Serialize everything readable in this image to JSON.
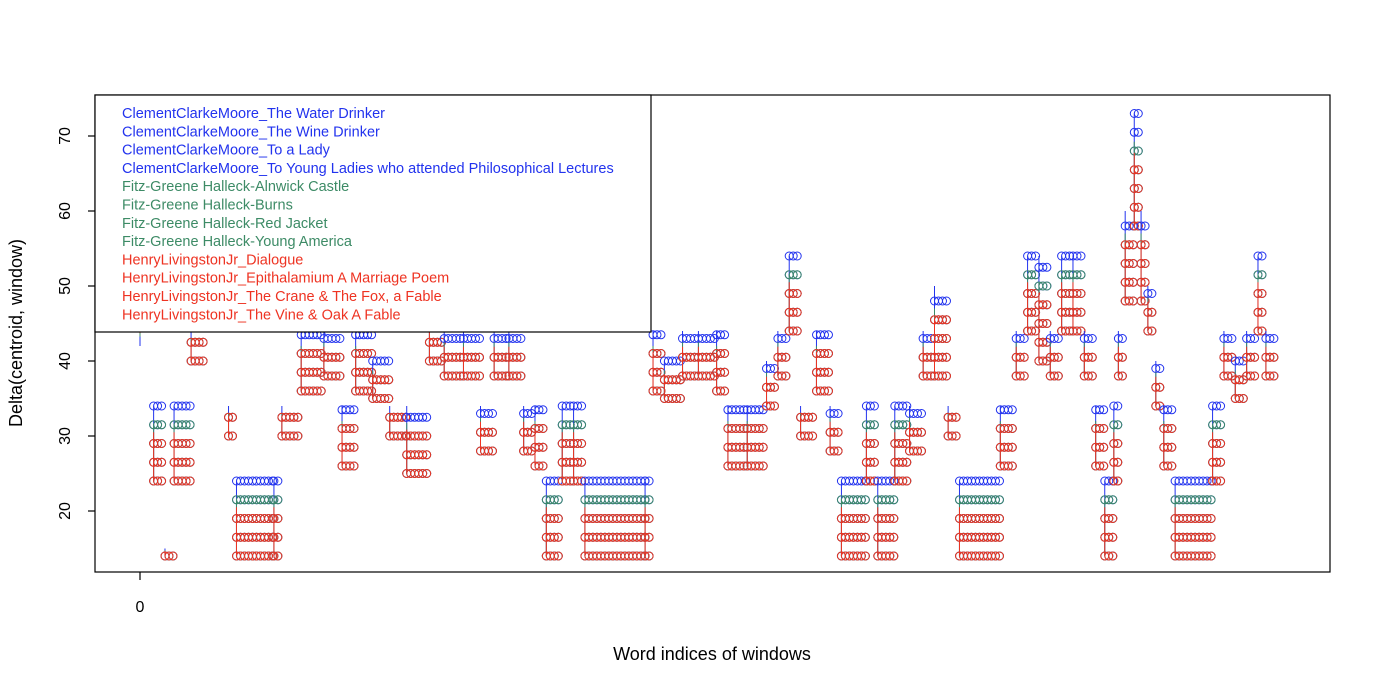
{
  "chart_data": {
    "type": "scatter",
    "title": "",
    "xlabel": "Word indices of windows",
    "ylabel": "Delta(centroid, window)",
    "xlim": [
      0,
      1000
    ],
    "ylim": [
      12,
      76
    ],
    "x_ticks": [
      0
    ],
    "y_ticks": [
      20,
      30,
      40,
      50,
      60,
      70
    ],
    "grid": false,
    "legend_position": "top-left",
    "colors": {
      "blue": "#2233ee",
      "green": "#3d8b66",
      "red": "#ee3322"
    },
    "legend": [
      {
        "label": "ClementClarkeMoore_The Water Drinker",
        "color": "#2233ee"
      },
      {
        "label": "ClementClarkeMoore_The Wine Drinker",
        "color": "#2233ee"
      },
      {
        "label": "ClementClarkeMoore_To a Lady",
        "color": "#2233ee"
      },
      {
        "label": "ClementClarkeMoore_To Young Ladies who attended Philosophical Lectures",
        "color": "#2233ee"
      },
      {
        "label": "Fitz-Greene Halleck-Alnwick Castle",
        "color": "#3d8b66"
      },
      {
        "label": "Fitz-Greene Halleck-Burns",
        "color": "#3d8b66"
      },
      {
        "label": "Fitz-Greene Halleck-Red Jacket",
        "color": "#3d8b66"
      },
      {
        "label": "Fitz-Greene Halleck-Young America",
        "color": "#3d8b66"
      },
      {
        "label": "HenryLivingstonJr_Dialogue",
        "color": "#ee3322"
      },
      {
        "label": "HenryLivingstonJr_Epithalamium A Marriage Poem",
        "color": "#ee3322"
      },
      {
        "label": "HenryLivingstonJr_The Crane & The Fox, a Fable",
        "color": "#ee3322"
      },
      {
        "label": "HenryLivingstonJr_The Vine & Oak A Fable",
        "color": "#ee3322"
      }
    ],
    "profile": [
      [
        0,
        42,
        47
      ],
      [
        12,
        34,
        24
      ],
      [
        22,
        15,
        14
      ],
      [
        30,
        34,
        24
      ],
      [
        45,
        44,
        40
      ],
      [
        58,
        44,
        45
      ],
      [
        68,
        46,
        47
      ],
      [
        78,
        34,
        30
      ],
      [
        85,
        24,
        14
      ],
      [
        118,
        24,
        14
      ],
      [
        125,
        34,
        30
      ],
      [
        142,
        44,
        36
      ],
      [
        162,
        44,
        38
      ],
      [
        178,
        34,
        26
      ],
      [
        190,
        44,
        36
      ],
      [
        205,
        40,
        35
      ],
      [
        220,
        34,
        30
      ],
      [
        235,
        34,
        25
      ],
      [
        255,
        48,
        40
      ],
      [
        268,
        44,
        38
      ],
      [
        285,
        44,
        38
      ],
      [
        300,
        34,
        28
      ],
      [
        312,
        44,
        38
      ],
      [
        325,
        44,
        38
      ],
      [
        338,
        34,
        28
      ],
      [
        348,
        34,
        26
      ],
      [
        358,
        24,
        14
      ],
      [
        372,
        34,
        24
      ],
      [
        382,
        34,
        24
      ],
      [
        392,
        24,
        14
      ],
      [
        445,
        24,
        14
      ],
      [
        452,
        44,
        36
      ],
      [
        462,
        40,
        35
      ],
      [
        478,
        44,
        38
      ],
      [
        492,
        44,
        38
      ],
      [
        508,
        44,
        36
      ],
      [
        518,
        34,
        26
      ],
      [
        535,
        34,
        26
      ],
      [
        552,
        40,
        34
      ],
      [
        562,
        44,
        38
      ],
      [
        572,
        54,
        44
      ],
      [
        582,
        34,
        30
      ],
      [
        596,
        44,
        36
      ],
      [
        608,
        34,
        28
      ],
      [
        618,
        24,
        14
      ],
      [
        640,
        34,
        24
      ],
      [
        650,
        24,
        14
      ],
      [
        665,
        34,
        24
      ],
      [
        678,
        34,
        28
      ],
      [
        690,
        44,
        38
      ],
      [
        700,
        50,
        38
      ],
      [
        712,
        34,
        30
      ],
      [
        722,
        24,
        14
      ],
      [
        758,
        34,
        26
      ],
      [
        772,
        44,
        38
      ],
      [
        782,
        54,
        44
      ],
      [
        792,
        54,
        40
      ],
      [
        802,
        44,
        38
      ],
      [
        812,
        54,
        44
      ],
      [
        822,
        54,
        44
      ],
      [
        832,
        44,
        38
      ],
      [
        842,
        34,
        26
      ],
      [
        850,
        24,
        14
      ],
      [
        858,
        34,
        24
      ],
      [
        862,
        44,
        38
      ],
      [
        868,
        60,
        48
      ],
      [
        876,
        73,
        58
      ],
      [
        882,
        60,
        48
      ],
      [
        888,
        50,
        44
      ],
      [
        895,
        40,
        34
      ],
      [
        902,
        34,
        26
      ],
      [
        912,
        24,
        14
      ],
      [
        945,
        34,
        24
      ],
      [
        955,
        44,
        38
      ],
      [
        965,
        40,
        35
      ],
      [
        975,
        44,
        38
      ],
      [
        985,
        54,
        44
      ],
      [
        992,
        44,
        38
      ],
      [
        1000,
        54,
        44
      ]
    ]
  }
}
